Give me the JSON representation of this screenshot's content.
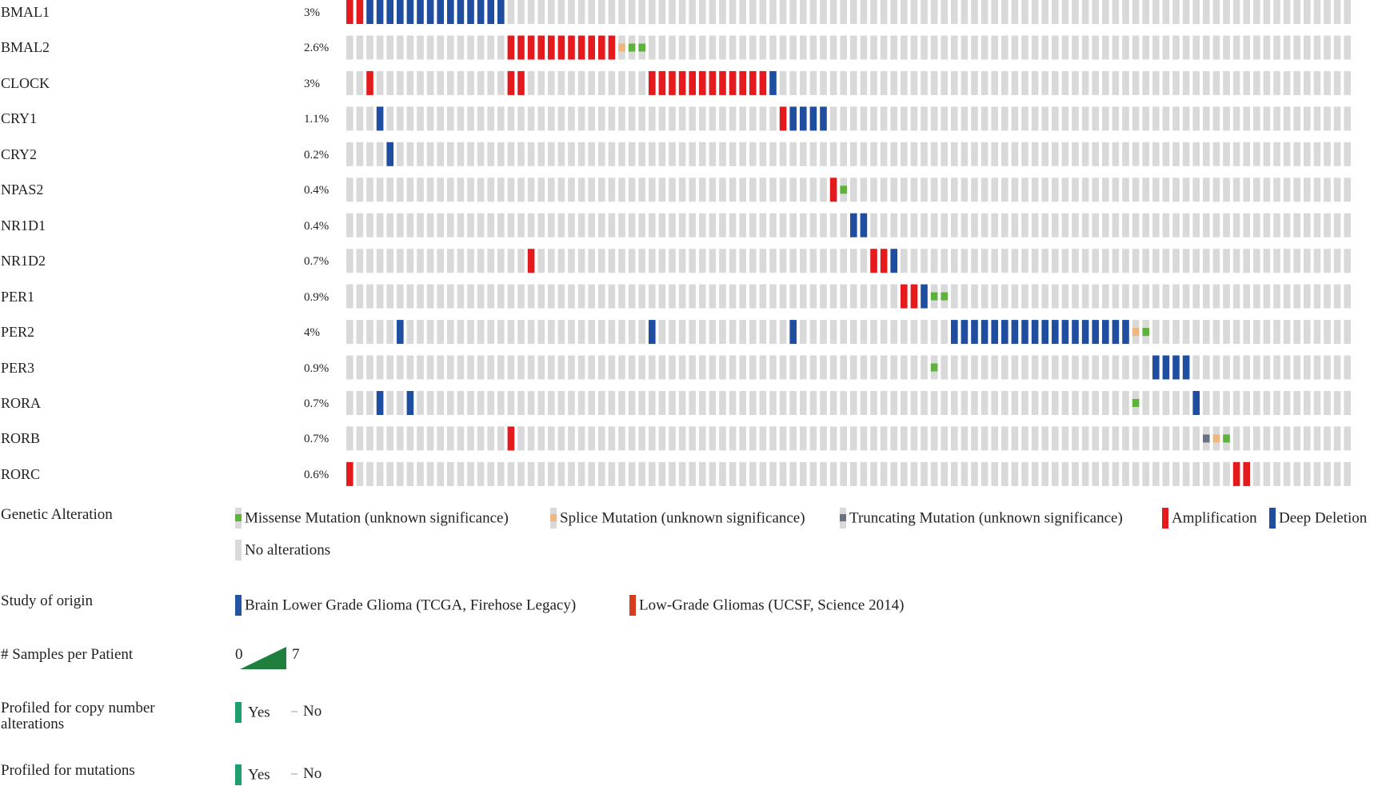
{
  "chart_data": {
    "type": "oncoprint",
    "sample_count": 100,
    "genes": [
      {
        "name": "BMAL1",
        "pct": "3%",
        "alterations": [
          {
            "c": 0,
            "t": "amp"
          },
          {
            "c": 1,
            "t": "amp"
          },
          {
            "c": 2,
            "t": "del"
          },
          {
            "c": 3,
            "t": "del"
          },
          {
            "c": 4,
            "t": "del"
          },
          {
            "c": 5,
            "t": "del"
          },
          {
            "c": 6,
            "t": "del"
          },
          {
            "c": 7,
            "t": "del"
          },
          {
            "c": 8,
            "t": "del"
          },
          {
            "c": 9,
            "t": "del"
          },
          {
            "c": 10,
            "t": "del"
          },
          {
            "c": 11,
            "t": "del"
          },
          {
            "c": 12,
            "t": "del"
          },
          {
            "c": 13,
            "t": "del"
          },
          {
            "c": 14,
            "t": "del"
          },
          {
            "c": 15,
            "t": "del"
          }
        ]
      },
      {
        "name": "BMAL2",
        "pct": "2.6%",
        "alterations": [
          {
            "c": 16,
            "t": "amp"
          },
          {
            "c": 17,
            "t": "amp"
          },
          {
            "c": 18,
            "t": "amp"
          },
          {
            "c": 19,
            "t": "amp"
          },
          {
            "c": 20,
            "t": "amp"
          },
          {
            "c": 21,
            "t": "amp"
          },
          {
            "c": 22,
            "t": "amp"
          },
          {
            "c": 23,
            "t": "amp"
          },
          {
            "c": 24,
            "t": "amp"
          },
          {
            "c": 25,
            "t": "amp"
          },
          {
            "c": 26,
            "t": "amp"
          },
          {
            "c": 27,
            "t": "splice"
          },
          {
            "c": 28,
            "t": "missense"
          },
          {
            "c": 29,
            "t": "missense"
          }
        ]
      },
      {
        "name": "CLOCK",
        "pct": "3%",
        "alterations": [
          {
            "c": 2,
            "t": "amp"
          },
          {
            "c": 16,
            "t": "amp"
          },
          {
            "c": 17,
            "t": "amp"
          },
          {
            "c": 30,
            "t": "amp"
          },
          {
            "c": 31,
            "t": "amp"
          },
          {
            "c": 32,
            "t": "amp"
          },
          {
            "c": 33,
            "t": "amp"
          },
          {
            "c": 34,
            "t": "amp"
          },
          {
            "c": 35,
            "t": "amp"
          },
          {
            "c": 36,
            "t": "amp"
          },
          {
            "c": 37,
            "t": "amp"
          },
          {
            "c": 38,
            "t": "amp"
          },
          {
            "c": 39,
            "t": "amp"
          },
          {
            "c": 40,
            "t": "amp"
          },
          {
            "c": 41,
            "t": "amp"
          },
          {
            "c": 42,
            "t": "del"
          }
        ]
      },
      {
        "name": "CRY1",
        "pct": "1.1%",
        "alterations": [
          {
            "c": 3,
            "t": "del"
          },
          {
            "c": 43,
            "t": "amp"
          },
          {
            "c": 44,
            "t": "del"
          },
          {
            "c": 45,
            "t": "del"
          },
          {
            "c": 46,
            "t": "del"
          },
          {
            "c": 47,
            "t": "del"
          }
        ]
      },
      {
        "name": "CRY2",
        "pct": "0.2%",
        "alterations": [
          {
            "c": 4,
            "t": "del"
          }
        ]
      },
      {
        "name": "NPAS2",
        "pct": "0.4%",
        "alterations": [
          {
            "c": 48,
            "t": "amp"
          },
          {
            "c": 49,
            "t": "missense"
          }
        ]
      },
      {
        "name": "NR1D1",
        "pct": "0.4%",
        "alterations": [
          {
            "c": 50,
            "t": "del"
          },
          {
            "c": 51,
            "t": "del"
          }
        ]
      },
      {
        "name": "NR1D2",
        "pct": "0.7%",
        "alterations": [
          {
            "c": 18,
            "t": "amp"
          },
          {
            "c": 52,
            "t": "amp"
          },
          {
            "c": 53,
            "t": "amp"
          },
          {
            "c": 54,
            "t": "del"
          }
        ]
      },
      {
        "name": "PER1",
        "pct": "0.9%",
        "alterations": [
          {
            "c": 55,
            "t": "amp"
          },
          {
            "c": 56,
            "t": "amp"
          },
          {
            "c": 57,
            "t": "del"
          },
          {
            "c": 58,
            "t": "missense"
          },
          {
            "c": 59,
            "t": "missense"
          }
        ]
      },
      {
        "name": "PER2",
        "pct": "4%",
        "alterations": [
          {
            "c": 5,
            "t": "del"
          },
          {
            "c": 30,
            "t": "del"
          },
          {
            "c": 44,
            "t": "del"
          },
          {
            "c": 60,
            "t": "del"
          },
          {
            "c": 61,
            "t": "del"
          },
          {
            "c": 62,
            "t": "del"
          },
          {
            "c": 63,
            "t": "del"
          },
          {
            "c": 64,
            "t": "del"
          },
          {
            "c": 65,
            "t": "del"
          },
          {
            "c": 66,
            "t": "del"
          },
          {
            "c": 67,
            "t": "del"
          },
          {
            "c": 68,
            "t": "del"
          },
          {
            "c": 69,
            "t": "del"
          },
          {
            "c": 70,
            "t": "del"
          },
          {
            "c": 71,
            "t": "del"
          },
          {
            "c": 72,
            "t": "del"
          },
          {
            "c": 73,
            "t": "del"
          },
          {
            "c": 74,
            "t": "del"
          },
          {
            "c": 75,
            "t": "del"
          },
          {
            "c": 76,
            "t": "del"
          },
          {
            "c": 77,
            "t": "del"
          },
          {
            "c": 78,
            "t": "splice"
          },
          {
            "c": 79,
            "t": "missense"
          }
        ]
      },
      {
        "name": "PER3",
        "pct": "0.9%",
        "alterations": [
          {
            "c": 58,
            "t": "missense"
          },
          {
            "c": 80,
            "t": "del"
          },
          {
            "c": 81,
            "t": "del"
          },
          {
            "c": 82,
            "t": "del"
          },
          {
            "c": 83,
            "t": "del"
          }
        ]
      },
      {
        "name": "RORA",
        "pct": "0.7%",
        "alterations": [
          {
            "c": 3,
            "t": "del"
          },
          {
            "c": 6,
            "t": "del"
          },
          {
            "c": 78,
            "t": "missense"
          },
          {
            "c": 84,
            "t": "del"
          }
        ]
      },
      {
        "name": "RORB",
        "pct": "0.7%",
        "alterations": [
          {
            "c": 16,
            "t": "amp"
          },
          {
            "c": 85,
            "t": "truncating"
          },
          {
            "c": 86,
            "t": "splice"
          },
          {
            "c": 87,
            "t": "missense"
          }
        ]
      },
      {
        "name": "RORC",
        "pct": "0.6%",
        "alterations": [
          {
            "c": 0,
            "t": "amp"
          },
          {
            "c": 88,
            "t": "amp"
          },
          {
            "c": 89,
            "t": "amp"
          }
        ]
      }
    ],
    "colors": {
      "amp": "#e41a1c",
      "del": "#1f4ea1",
      "missense": "#5cb23b",
      "splice": "#f1b57e",
      "truncating": "#6b7382",
      "none": "#d9d9d9"
    }
  },
  "legend": {
    "genetic_alteration": {
      "title": "Genetic Alteration",
      "items": [
        {
          "label": "Missense Mutation (unknown significance)",
          "type": "missense"
        },
        {
          "label": "Splice Mutation (unknown significance)",
          "type": "splice"
        },
        {
          "label": "Truncating Mutation (unknown significance)",
          "type": "truncating"
        },
        {
          "label": "Amplification",
          "type": "amp"
        },
        {
          "label": "Deep Deletion",
          "type": "del"
        },
        {
          "label": "No alterations",
          "type": "none"
        }
      ]
    },
    "study": {
      "title": "Study of origin",
      "items": [
        {
          "label": "Brain Lower Grade Glioma (TCGA, Firehose Legacy)",
          "color": "#2454a4"
        },
        {
          "label": "Low-Grade Gliomas (UCSF, Science 2014)",
          "color": "#d83c1f"
        }
      ]
    },
    "samples": {
      "title": "# Samples per Patient",
      "min": "0",
      "max": "7",
      "color": "#1f7f3c"
    },
    "copy_number": {
      "title_line1": "Profiled for copy number",
      "title_line2": "alterations",
      "yes": "Yes",
      "no": "No",
      "color": "#1f9e6e"
    },
    "mutations": {
      "title": "Profiled for mutations",
      "yes": "Yes",
      "no": "No",
      "color": "#1f9e6e"
    }
  }
}
